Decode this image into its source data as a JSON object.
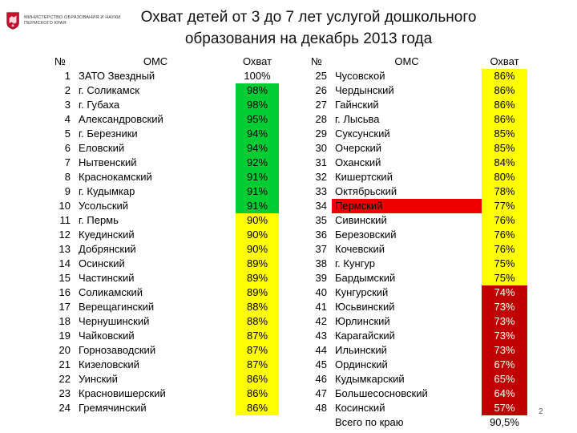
{
  "header": {
    "ministry_text": "Министерство образования и науки Пермского края",
    "title_line1": "Охват детей от 3 до 7 лет услугой дошкольного",
    "title_line2": "образования на декабрь 2013 года"
  },
  "columns": {
    "num": "№",
    "oms": "ОМС",
    "coverage": "Охват"
  },
  "colors": {
    "white": "#ffffff",
    "green": "#00cc33",
    "lightgreen": "#66ee33",
    "yellow": "#ffff00",
    "red": "#ee0000",
    "darkred": "#c00000"
  },
  "left_rows": [
    {
      "num": "1",
      "name": "ЗАТО Звездный",
      "coverage": "100%",
      "color": "white"
    },
    {
      "num": "2",
      "name": "г. Соликамск",
      "coverage": "98%",
      "color": "green"
    },
    {
      "num": "3",
      "name": "г. Губаха",
      "coverage": "98%",
      "color": "green"
    },
    {
      "num": "4",
      "name": "Александровский",
      "coverage": "95%",
      "color": "green"
    },
    {
      "num": "5",
      "name": "г. Березники",
      "coverage": "94%",
      "color": "green"
    },
    {
      "num": "6",
      "name": "Еловский",
      "coverage": "94%",
      "color": "green"
    },
    {
      "num": "7",
      "name": "Нытвенский",
      "coverage": "92%",
      "color": "green"
    },
    {
      "num": "8",
      "name": "Краснокамский",
      "coverage": "91%",
      "color": "green"
    },
    {
      "num": "9",
      "name": "г. Кудымкар",
      "coverage": "91%",
      "color": "green"
    },
    {
      "num": "10",
      "name": "Усольский",
      "coverage": "91%",
      "color": "green"
    },
    {
      "num": "11",
      "name": "г. Пермь",
      "coverage": "90%",
      "color": "yellow"
    },
    {
      "num": "12",
      "name": "Куединский",
      "coverage": "90%",
      "color": "yellow"
    },
    {
      "num": "13",
      "name": "Добрянский",
      "coverage": "90%",
      "color": "yellow"
    },
    {
      "num": "14",
      "name": "Осинский",
      "coverage": "89%",
      "color": "yellow"
    },
    {
      "num": "15",
      "name": "Частинский",
      "coverage": "89%",
      "color": "yellow"
    },
    {
      "num": "16",
      "name": "Соликамский",
      "coverage": "89%",
      "color": "yellow"
    },
    {
      "num": "17",
      "name": "Верещагинский",
      "coverage": "88%",
      "color": "yellow"
    },
    {
      "num": "18",
      "name": "Чернушинский",
      "coverage": "88%",
      "color": "yellow"
    },
    {
      "num": "19",
      "name": "Чайковский",
      "coverage": "87%",
      "color": "yellow"
    },
    {
      "num": "20",
      "name": "Горнозаводский",
      "coverage": "87%",
      "color": "yellow"
    },
    {
      "num": "21",
      "name": "Кизеловский",
      "coverage": "87%",
      "color": "yellow"
    },
    {
      "num": "22",
      "name": "Уинский",
      "coverage": "86%",
      "color": "yellow"
    },
    {
      "num": "23",
      "name": "Красновишерский",
      "coverage": "86%",
      "color": "yellow"
    },
    {
      "num": "24",
      "name": "Гремячинский",
      "coverage": "86%",
      "color": "yellow"
    }
  ],
  "right_rows": [
    {
      "num": "25",
      "name": "Чусовской",
      "coverage": "86%",
      "color": "yellow",
      "name_color": "white"
    },
    {
      "num": "26",
      "name": "Чердынский",
      "coverage": "86%",
      "color": "yellow",
      "name_color": "white"
    },
    {
      "num": "27",
      "name": "Гайнский",
      "coverage": "86%",
      "color": "yellow",
      "name_color": "white"
    },
    {
      "num": "28",
      "name": "г. Лысьва",
      "coverage": "86%",
      "color": "yellow",
      "name_color": "white"
    },
    {
      "num": "29",
      "name": "Суксунский",
      "coverage": "85%",
      "color": "yellow",
      "name_color": "white"
    },
    {
      "num": "30",
      "name": "Очерский",
      "coverage": "85%",
      "color": "yellow",
      "name_color": "white"
    },
    {
      "num": "31",
      "name": "Оханский",
      "coverage": "84%",
      "color": "yellow",
      "name_color": "white"
    },
    {
      "num": "32",
      "name": "Кишертский",
      "coverage": "80%",
      "color": "yellow",
      "name_color": "white"
    },
    {
      "num": "33",
      "name": "Октябрьский",
      "coverage": "78%",
      "color": "yellow",
      "name_color": "white"
    },
    {
      "num": "34",
      "name": "Пермский",
      "coverage": "77%",
      "color": "yellow",
      "name_color": "red"
    },
    {
      "num": "35",
      "name": "Сивинский",
      "coverage": "76%",
      "color": "yellow",
      "name_color": "white"
    },
    {
      "num": "36",
      "name": "Березовский",
      "coverage": "76%",
      "color": "yellow",
      "name_color": "white"
    },
    {
      "num": "37",
      "name": "Кочевский",
      "coverage": "76%",
      "color": "yellow",
      "name_color": "white"
    },
    {
      "num": "38",
      "name": "г. Кунгур",
      "coverage": "75%",
      "color": "yellow",
      "name_color": "white"
    },
    {
      "num": "39",
      "name": "Бардымский",
      "coverage": "75%",
      "color": "yellow",
      "name_color": "white"
    },
    {
      "num": "40",
      "name": "Кунгурский",
      "coverage": "74%",
      "color": "darkred",
      "name_color": "white"
    },
    {
      "num": "41",
      "name": "Юсьвинский",
      "coverage": "73%",
      "color": "darkred",
      "name_color": "white"
    },
    {
      "num": "42",
      "name": "Юрлинский",
      "coverage": "73%",
      "color": "darkred",
      "name_color": "white"
    },
    {
      "num": "43",
      "name": "Карагайский",
      "coverage": "73%",
      "color": "darkred",
      "name_color": "white"
    },
    {
      "num": "44",
      "name": "Ильинский",
      "coverage": "73%",
      "color": "darkred",
      "name_color": "white"
    },
    {
      "num": "45",
      "name": "Ординский",
      "coverage": "67%",
      "color": "darkred",
      "name_color": "white"
    },
    {
      "num": "46",
      "name": "Кудымкарский",
      "coverage": "65%",
      "color": "darkred",
      "name_color": "white"
    },
    {
      "num": "47",
      "name": "Большесосновский",
      "coverage": "64%",
      "color": "darkred",
      "name_color": "white"
    },
    {
      "num": "48",
      "name": "Косинский",
      "coverage": "57%",
      "color": "darkred",
      "name_color": "white"
    }
  ],
  "total": {
    "label": "Всего по краю",
    "value": "90,5%"
  },
  "page_number": "2"
}
